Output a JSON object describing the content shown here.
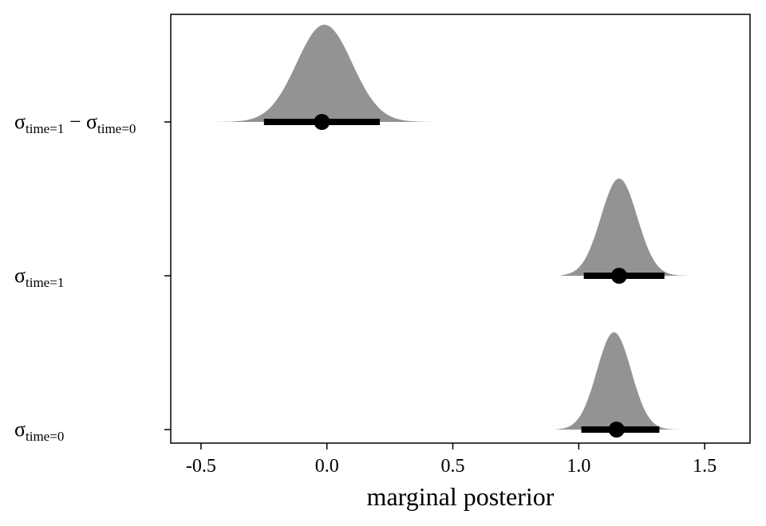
{
  "chart_data": {
    "type": "density",
    "xlabel": "marginal posterior",
    "xlim": [
      -0.62,
      1.68
    ],
    "xticks": [
      -0.5,
      0.0,
      0.5,
      1.0,
      1.5
    ],
    "xtick_labels": [
      "-0.5",
      "0.0",
      "0.5",
      "1.0",
      "1.5"
    ],
    "grid": false,
    "fill_color": "#939393",
    "interval_color": "#000000",
    "categories": [
      {
        "name": "σtime=1 − σtime=0",
        "label_base": "σ",
        "label_sub1": "time=1",
        "label_mid": " − σ",
        "label_sub2": "time=0",
        "point": -0.02,
        "interval": [
          -0.25,
          0.21
        ],
        "mean": -0.01,
        "sd": 0.11,
        "range": [
          -0.52,
          0.52
        ],
        "peak": 1.0
      },
      {
        "name": "σtime=1",
        "label_base": "σ",
        "label_sub1": "time=1",
        "label_mid": "",
        "label_sub2": "",
        "point": 1.16,
        "interval": [
          1.02,
          1.34
        ],
        "mean": 1.16,
        "sd": 0.072,
        "range": [
          0.93,
          1.6
        ],
        "peak": 1.0
      },
      {
        "name": "σtime=0",
        "label_base": "σ",
        "label_sub1": "time=0",
        "label_mid": "",
        "label_sub2": "",
        "point": 1.15,
        "interval": [
          1.01,
          1.32
        ],
        "mean": 1.14,
        "sd": 0.068,
        "range": [
          0.91,
          1.58
        ],
        "peak": 1.0
      }
    ]
  }
}
